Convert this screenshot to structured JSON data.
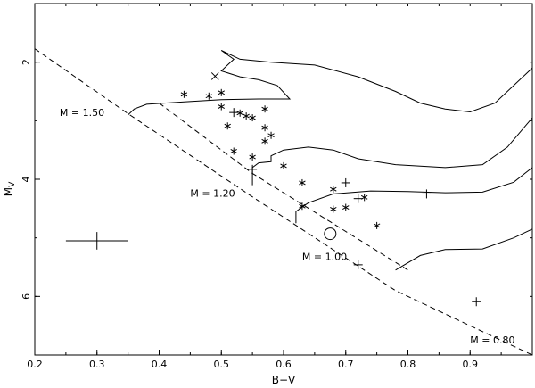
{
  "chart_data": {
    "type": "scatter",
    "xlabel": "B−V",
    "ylabel_main": "M",
    "ylabel_sub": "V",
    "xlim": [
      0.2,
      1.0
    ],
    "ylim": [
      7.0,
      1.0
    ],
    "y_inverted": true,
    "x_ticks": [
      {
        "v": 0.2,
        "label": "0.2"
      },
      {
        "v": 0.3,
        "label": "0.3"
      },
      {
        "v": 0.4,
        "label": "0.4"
      },
      {
        "v": 0.5,
        "label": "0.5"
      },
      {
        "v": 0.6,
        "label": "0.6"
      },
      {
        "v": 0.7,
        "label": "0.7"
      },
      {
        "v": 0.8,
        "label": "0.8"
      },
      {
        "v": 0.9,
        "label": "0.9"
      }
    ],
    "y_ticks": [
      {
        "v": 2,
        "label": "2"
      },
      {
        "v": 4,
        "label": "4"
      },
      {
        "v": 6,
        "label": "6"
      }
    ],
    "zams_line": [
      [
        0.2,
        1.77
      ],
      [
        0.35,
        2.88
      ],
      [
        0.55,
        4.3
      ],
      [
        0.78,
        5.9
      ],
      [
        1.0,
        7.3
      ]
    ],
    "reference_line": [
      [
        0.4,
        2.7
      ],
      [
        0.55,
        3.9
      ],
      [
        0.8,
        5.55
      ]
    ],
    "tracks": [
      {
        "label": "M =   1.50",
        "label_x": 0.24,
        "label_y": 2.92,
        "points": [
          [
            0.35,
            2.9
          ],
          [
            0.36,
            2.8
          ],
          [
            0.38,
            2.72
          ],
          [
            0.44,
            2.68
          ],
          [
            0.5,
            2.64
          ],
          [
            0.56,
            2.63
          ],
          [
            0.61,
            2.63
          ],
          [
            0.59,
            2.4
          ],
          [
            0.56,
            2.3
          ],
          [
            0.53,
            2.25
          ],
          [
            0.5,
            2.15
          ],
          [
            0.51,
            2.05
          ],
          [
            0.52,
            1.95
          ],
          [
            0.5,
            1.8
          ],
          [
            0.53,
            1.95
          ],
          [
            0.58,
            2.0
          ],
          [
            0.65,
            2.05
          ],
          [
            0.72,
            2.25
          ],
          [
            0.78,
            2.5
          ],
          [
            0.82,
            2.7
          ],
          [
            0.86,
            2.8
          ],
          [
            0.9,
            2.85
          ],
          [
            0.94,
            2.7
          ],
          [
            0.97,
            2.4
          ],
          [
            1.0,
            2.1
          ]
        ]
      },
      {
        "label": "M =   1.20",
        "label_x": 0.45,
        "label_y": 4.3,
        "points": [
          [
            0.55,
            4.1
          ],
          [
            0.55,
            3.95
          ],
          [
            0.55,
            3.8
          ],
          [
            0.56,
            3.72
          ],
          [
            0.58,
            3.7
          ],
          [
            0.58,
            3.6
          ],
          [
            0.6,
            3.5
          ],
          [
            0.64,
            3.45
          ],
          [
            0.68,
            3.5
          ],
          [
            0.72,
            3.65
          ],
          [
            0.78,
            3.75
          ],
          [
            0.86,
            3.8
          ],
          [
            0.92,
            3.75
          ],
          [
            0.96,
            3.45
          ],
          [
            1.0,
            2.95
          ]
        ]
      },
      {
        "label": "M =   1.00",
        "label_x": 0.63,
        "label_y": 5.38,
        "points": [
          [
            0.62,
            4.75
          ],
          [
            0.62,
            4.55
          ],
          [
            0.64,
            4.4
          ],
          [
            0.68,
            4.25
          ],
          [
            0.74,
            4.2
          ],
          [
            0.8,
            4.21
          ],
          [
            0.86,
            4.23
          ],
          [
            0.92,
            4.22
          ],
          [
            0.97,
            4.05
          ],
          [
            1.0,
            3.8
          ]
        ]
      },
      {
        "label": "M =   0.80",
        "label_x": 0.9,
        "label_y": 6.8,
        "points": [
          [
            0.78,
            5.55
          ],
          [
            0.82,
            5.3
          ],
          [
            0.86,
            5.2
          ],
          [
            0.92,
            5.19
          ],
          [
            0.97,
            5.0
          ],
          [
            1.0,
            4.85
          ]
        ]
      }
    ],
    "series": [
      {
        "marker": "asterisk",
        "points": [
          [
            0.44,
            2.55
          ],
          [
            0.48,
            2.58
          ],
          [
            0.5,
            2.52
          ],
          [
            0.5,
            2.76
          ],
          [
            0.51,
            3.09
          ],
          [
            0.53,
            2.87
          ],
          [
            0.54,
            2.92
          ],
          [
            0.55,
            2.95
          ],
          [
            0.52,
            3.52
          ],
          [
            0.57,
            2.8
          ],
          [
            0.57,
            3.12
          ],
          [
            0.58,
            3.25
          ],
          [
            0.57,
            3.35
          ],
          [
            0.55,
            3.62
          ],
          [
            0.6,
            3.77
          ],
          [
            0.63,
            4.06
          ],
          [
            0.63,
            4.46
          ],
          [
            0.68,
            4.51
          ],
          [
            0.68,
            4.17
          ],
          [
            0.7,
            4.48
          ],
          [
            0.73,
            4.31
          ],
          [
            0.75,
            4.79
          ]
        ]
      },
      {
        "marker": "plus",
        "points": [
          [
            0.7,
            4.06
          ],
          [
            0.52,
            2.86
          ],
          [
            0.55,
            3.83
          ],
          [
            0.72,
            4.33
          ],
          [
            0.72,
            5.46
          ],
          [
            0.83,
            4.25
          ],
          [
            0.91,
            6.09
          ]
        ]
      },
      {
        "marker": "cross",
        "points": [
          [
            0.49,
            2.24
          ]
        ]
      },
      {
        "marker": "circle",
        "points": [
          [
            0.675,
            4.93
          ]
        ]
      },
      {
        "marker": "errorbar",
        "points": [
          [
            0.3,
            5.05
          ]
        ],
        "dx": 0.05,
        "dy": 0.15
      }
    ]
  }
}
